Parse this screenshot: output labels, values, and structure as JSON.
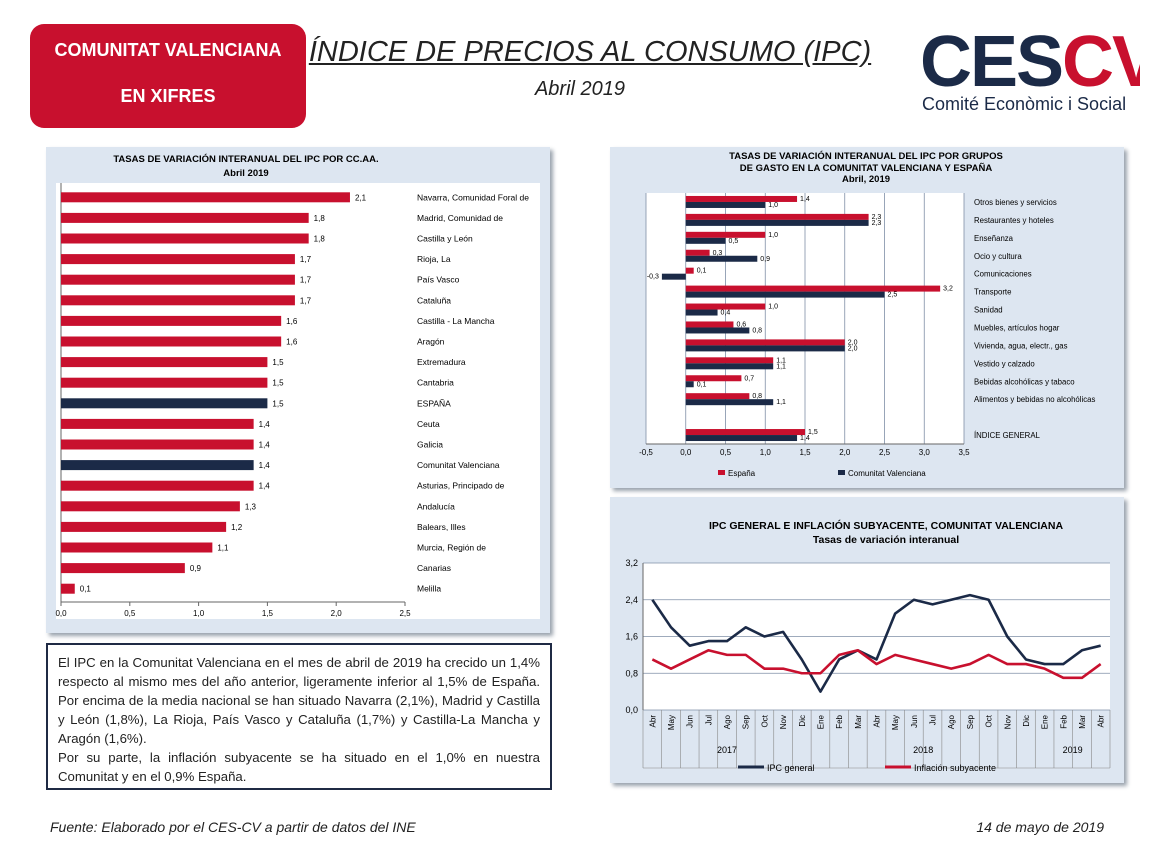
{
  "header": {
    "badge_line1": "COMUNITAT VALENCIANA",
    "badge_line2": "EN XIFRES",
    "title": "ÍNDICE DE PRECIOS AL CONSUMO (IPC)",
    "subtitle": "Abril 2019",
    "logo_text": "CESCV",
    "logo_caption": "Comité Econòmic i Social"
  },
  "colors": {
    "red": "#c8102e",
    "navy": "#1b2a47",
    "panel": "#dde6f1",
    "grid": "#7f8fa6"
  },
  "chart_data": [
    {
      "id": "ccaa",
      "type": "bar",
      "orientation": "horizontal",
      "title": "TASAS DE VARIACIÓN INTERANUAL DEL IPC POR CC.AA.",
      "subtitle": "Abril 2019",
      "categories": [
        "Navarra, Comunidad Foral de",
        "Madrid, Comunidad de",
        "Castilla y León",
        "Rioja, La",
        "País Vasco",
        "Cataluña",
        "Castilla - La Mancha",
        "Aragón",
        "Extremadura",
        "Cantabria",
        "ESPAÑA",
        "Ceuta",
        "Galicia",
        "Comunitat Valenciana",
        "Asturias, Principado de",
        "Andalucía",
        "Balears, Illes",
        "Murcia, Región de",
        "Canarias",
        "Melilla"
      ],
      "values": [
        2.1,
        1.8,
        1.8,
        1.7,
        1.7,
        1.7,
        1.6,
        1.6,
        1.5,
        1.5,
        1.5,
        1.4,
        1.4,
        1.4,
        1.4,
        1.3,
        1.2,
        1.1,
        0.9,
        0.1
      ],
      "value_labels": [
        "2,1",
        "1,8",
        "1,8",
        "1,7",
        "1,7",
        "1,7",
        "1,6",
        "1,6",
        "1,5",
        "1,5",
        "1,5",
        "1,4",
        "1,4",
        "1,4",
        "1,4",
        "1,3",
        "1,2",
        "1,1",
        "0,9",
        "0,1"
      ],
      "highlight": [
        "ESPAÑA",
        "Comunitat Valenciana"
      ],
      "xlim": [
        0,
        2.5
      ],
      "xticks": [
        "0,0",
        "0,5",
        "1,0",
        "1,5",
        "2,0",
        "2,5"
      ]
    },
    {
      "id": "grupos",
      "type": "bar",
      "orientation": "horizontal",
      "title": "TASAS DE VARIACIÓN INTERANUAL DEL IPC POR GRUPOS",
      "title2": "DE GASTO EN LA COMUNITAT VALENCIANA Y ESPAÑA",
      "subtitle": "Abril, 2019",
      "categories": [
        "Otros bienes y servicios",
        "Restaurantes y hoteles",
        "Enseñanza",
        "Ocio y cultura",
        "Comunicaciones",
        "Transporte",
        "Sanidad",
        "Muebles, artículos hogar",
        "Vivienda, agua, electr., gas",
        "Vestido y calzado",
        "Bebidas alcohólicas y tabaco",
        "Alimentos y bebidas no alcohólicas",
        "",
        "ÍNDICE GENERAL"
      ],
      "series": [
        {
          "name": "España",
          "values": [
            1.4,
            2.3,
            1.0,
            0.3,
            0.1,
            3.2,
            1.0,
            0.6,
            2.0,
            1.1,
            0.7,
            0.8,
            null,
            1.5
          ],
          "labels": [
            "1,4",
            "2,3",
            "1,0",
            "0,3",
            "0,1",
            "3,2",
            "1,0",
            "0,6",
            "2,0",
            "1,1",
            "0,7",
            "0,8",
            "",
            "1,5"
          ]
        },
        {
          "name": "Comunitat Valenciana",
          "values": [
            1.0,
            2.3,
            0.5,
            0.9,
            -0.3,
            2.5,
            0.4,
            0.8,
            2.0,
            1.1,
            0.1,
            1.1,
            null,
            1.4
          ],
          "labels": [
            "1,0",
            "2,3",
            "0,5",
            "0,9",
            "-0,3",
            "2,5",
            "0,4",
            "0,8",
            "2,0",
            "1,1",
            "0,1",
            "1,1",
            "",
            "1,4"
          ]
        }
      ],
      "xlim": [
        -0.5,
        3.5
      ],
      "xticks": [
        "-0,5",
        "0,0",
        "0,5",
        "1,0",
        "1,5",
        "2,0",
        "2,5",
        "3,0",
        "3,5"
      ]
    },
    {
      "id": "subyacente",
      "type": "line",
      "title": "IPC GENERAL E INFLACIÓN SUBYACENTE, COMUNITAT VALENCIANA",
      "subtitle": "Tasas de variación interanual",
      "x": [
        "Abr",
        "May",
        "Jun",
        "Jul",
        "Ago",
        "Sep",
        "Oct",
        "Nov",
        "Dic",
        "Ene",
        "Feb",
        "Mar",
        "Abr",
        "May",
        "Jun",
        "Jul",
        "Ago",
        "Sep",
        "Oct",
        "Nov",
        "Dic",
        "Ene",
        "Feb",
        "Mar",
        "Abr"
      ],
      "year_groups": [
        {
          "label": "2017",
          "start": 0,
          "end": 8
        },
        {
          "label": "2018",
          "start": 9,
          "end": 20
        },
        {
          "label": "2019",
          "start": 21,
          "end": 24
        }
      ],
      "series": [
        {
          "name": "IPC general",
          "values": [
            2.4,
            1.8,
            1.4,
            1.5,
            1.5,
            1.8,
            1.6,
            1.7,
            1.1,
            0.4,
            1.1,
            1.3,
            1.1,
            2.1,
            2.4,
            2.3,
            2.4,
            2.5,
            2.4,
            1.6,
            1.1,
            1.0,
            1.0,
            1.3,
            1.4
          ]
        },
        {
          "name": "Inflación subyacente",
          "values": [
            1.1,
            0.9,
            1.1,
            1.3,
            1.2,
            1.2,
            0.9,
            0.9,
            0.8,
            0.8,
            1.2,
            1.3,
            1.0,
            1.2,
            1.1,
            1.0,
            0.9,
            1.0,
            1.2,
            1.0,
            1.0,
            0.9,
            0.7,
            0.7,
            1.0
          ]
        }
      ],
      "ylim": [
        0,
        3.2
      ],
      "yticks": [
        "0,0",
        "0,8",
        "1,6",
        "2,4",
        "3,2"
      ]
    }
  ],
  "text": {
    "p1": "El IPC en la Comunitat Valenciana en el mes de abril de 2019 ha crecido un 1,4% respecto al mismo mes del año anterior, ligeramente inferior al 1,5% de España. Por encima de la media nacional se han situado Navarra (2,1%), Madrid y Castilla y León (1,8%), La Rioja, País Vasco y Cataluña (1,7%) y Castilla-La Mancha y Aragón (1,6%).",
    "p2": "Por su parte, la inflación subyacente se ha situado en el 1,0% en nuestra Comunitat y en el 0,9% España."
  },
  "footer": {
    "source": "Fuente: Elaborado por el CES-CV a partir de datos del INE",
    "date": "14 de mayo de 2019"
  }
}
